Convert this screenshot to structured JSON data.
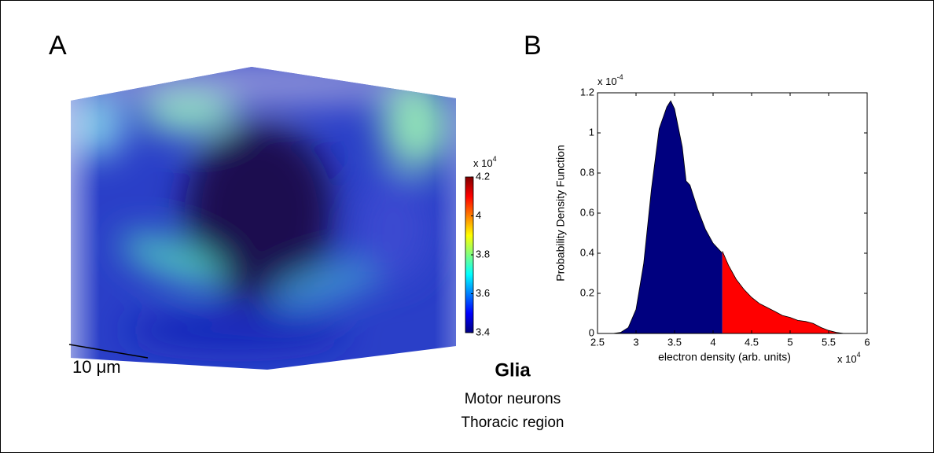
{
  "panel_labels": [
    "A",
    "B"
  ],
  "scale_bar": "10 μm",
  "caption": {
    "title": "Glia",
    "lines": [
      "Motor neurons",
      "Thoracic region"
    ]
  },
  "chart_data": [
    {
      "type": "colorbar",
      "colormap": "jet",
      "ylim": [
        3.4,
        4.2
      ],
      "yticks": [
        3.4,
        3.6,
        3.8,
        4,
        4.2
      ],
      "y_multiplier": {
        "base": "x 10",
        "exponent": "4"
      }
    },
    {
      "type": "area",
      "xlabel": "electron density (arb. units)",
      "ylabel": "Probability Density Function",
      "x": [
        2.5,
        2.7,
        2.8,
        2.9,
        3.0,
        3.1,
        3.2,
        3.3,
        3.4,
        3.45,
        3.5,
        3.6,
        3.65,
        3.7,
        3.8,
        3.9,
        4.0,
        4.12,
        4.2,
        4.3,
        4.4,
        4.5,
        4.6,
        4.7,
        4.8,
        4.9,
        5.0,
        5.1,
        5.2,
        5.3,
        5.4,
        5.5,
        5.6,
        5.7,
        6.0
      ],
      "series": [
        {
          "color": "#00007f",
          "values": [
            0,
            0,
            0.005,
            0.03,
            0.12,
            0.35,
            0.72,
            1.02,
            1.13,
            1.16,
            1.12,
            0.93,
            0.76,
            0.74,
            0.62,
            0.52,
            0.45,
            0.4,
            null,
            null,
            null,
            null,
            null,
            null,
            null,
            null,
            null,
            null,
            null,
            null,
            null,
            null,
            null,
            null,
            null
          ]
        },
        {
          "color": "#ff0000",
          "values": [
            null,
            null,
            null,
            null,
            null,
            null,
            null,
            null,
            null,
            null,
            null,
            null,
            null,
            null,
            null,
            null,
            null,
            0.41,
            0.34,
            0.27,
            0.22,
            0.18,
            0.15,
            0.13,
            0.11,
            0.09,
            0.08,
            0.065,
            0.06,
            0.05,
            0.03,
            0.015,
            0.005,
            0,
            0
          ]
        }
      ],
      "xlim": [
        2.5,
        6
      ],
      "ylim": [
        0,
        1.2
      ],
      "xticks": [
        2.5,
        3,
        3.5,
        4,
        4.5,
        5,
        5.5,
        6
      ],
      "yticks": [
        0,
        0.2,
        0.4,
        0.6,
        0.8,
        1,
        1.2
      ],
      "x_multiplier": {
        "base": "x 10",
        "exponent": "4"
      },
      "y_multiplier": {
        "base": "x 10",
        "exponent": "-4"
      }
    }
  ]
}
